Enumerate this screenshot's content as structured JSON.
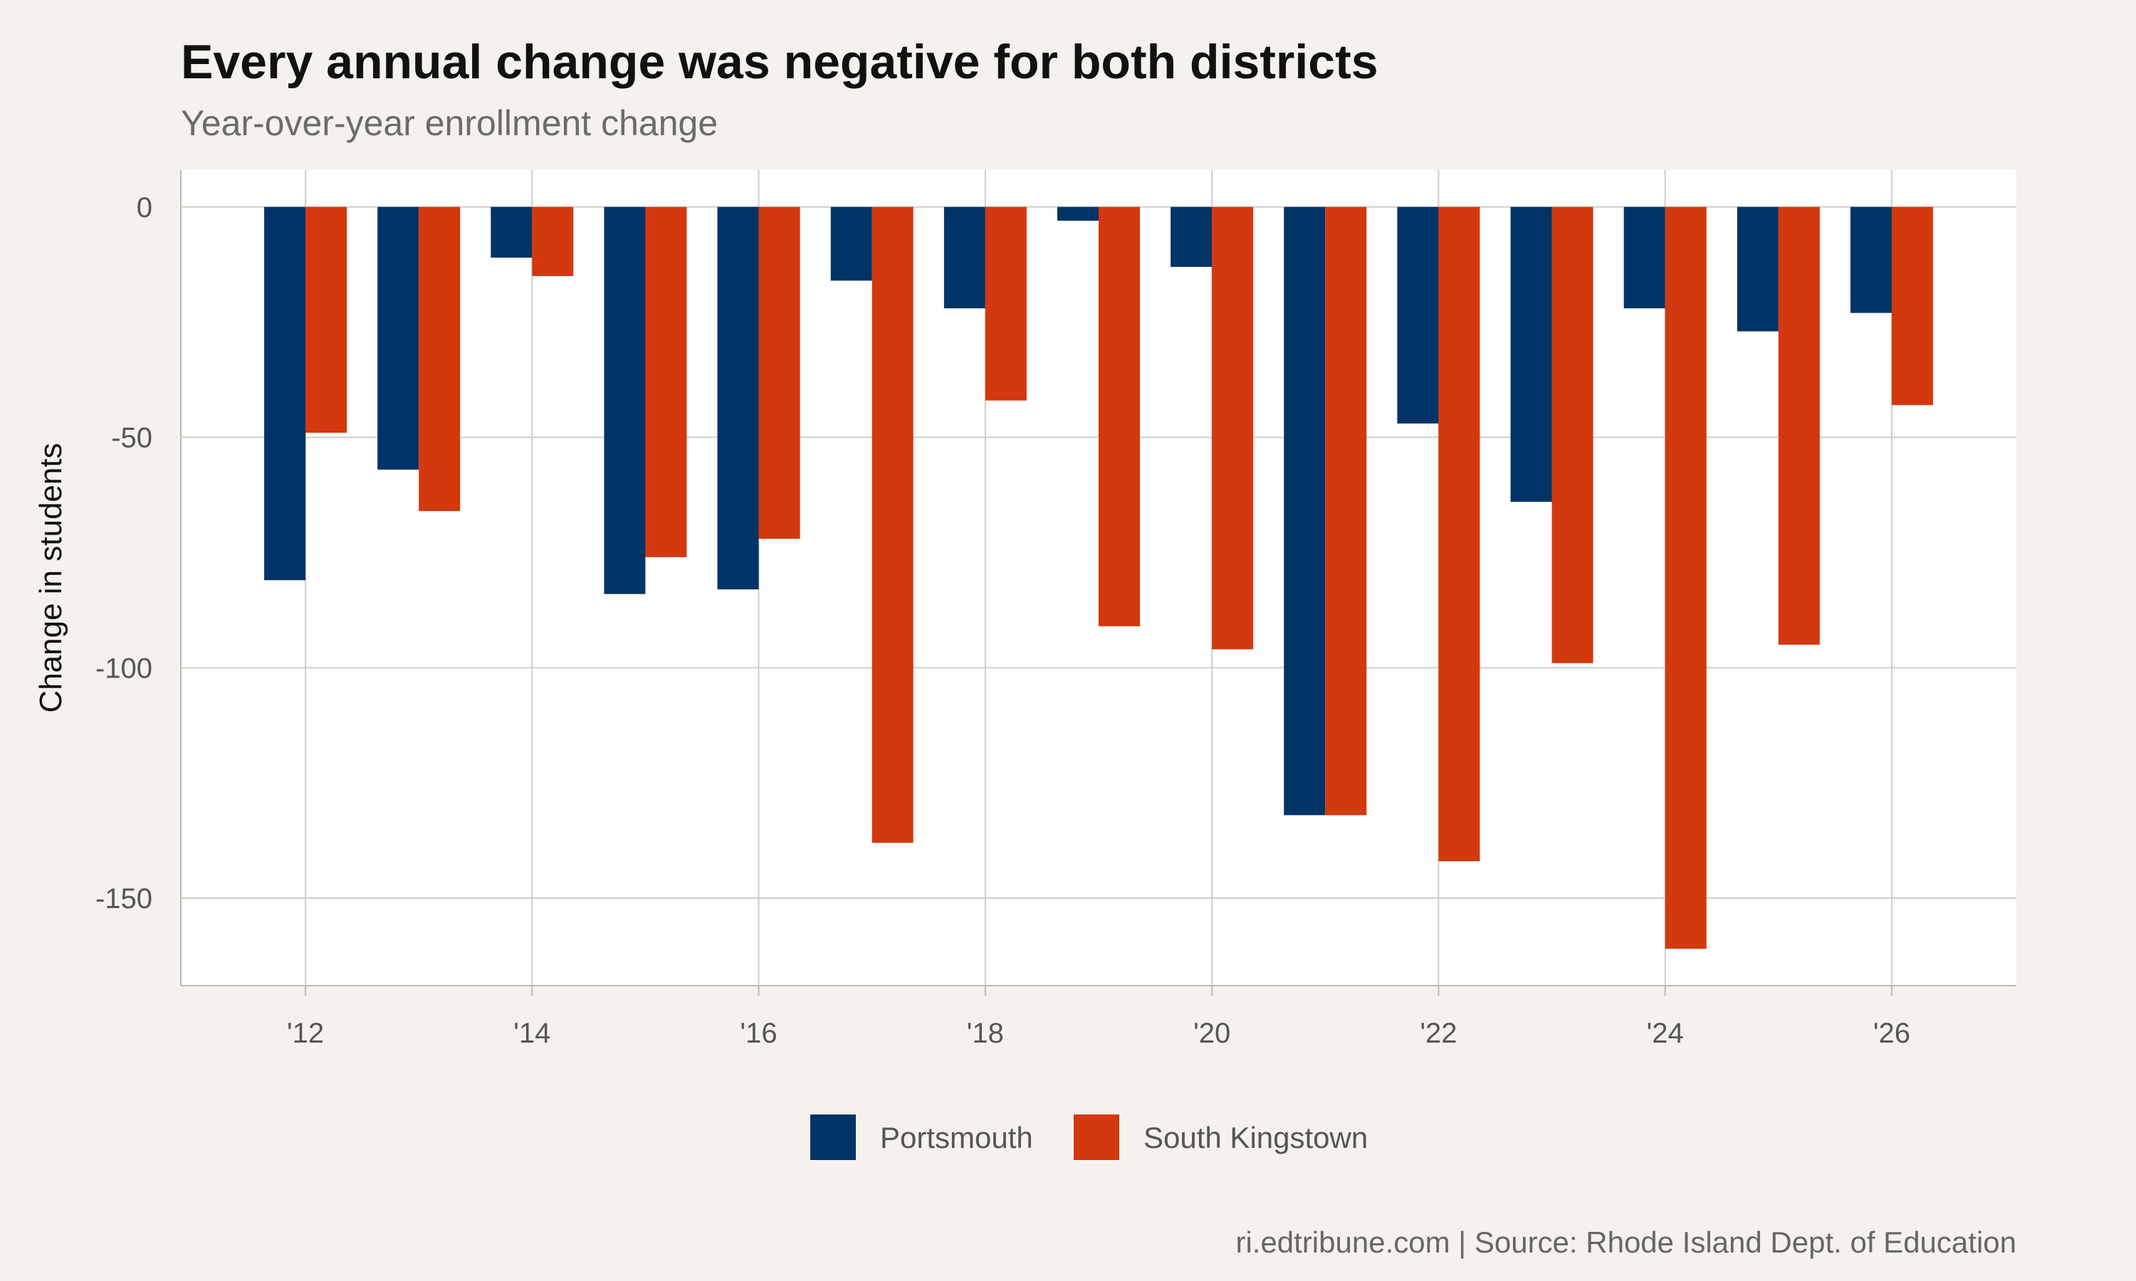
{
  "chart_data": {
    "type": "bar",
    "title": "Every annual change was negative for both districts",
    "subtitle": "Year-over-year enrollment change",
    "xlabel": "",
    "ylabel": "Change in students",
    "caption": "ri.edtribune.com | Source: Rhode Island Dept. of Education",
    "x": [
      2012,
      2013,
      2014,
      2015,
      2016,
      2017,
      2018,
      2019,
      2020,
      2021,
      2022,
      2023,
      2024,
      2025,
      2026
    ],
    "x_ticks": [
      2012,
      2014,
      2016,
      2018,
      2020,
      2022,
      2024,
      2026
    ],
    "x_tick_labels": [
      "'12",
      "'14",
      "'16",
      "'18",
      "'20",
      "'22",
      "'24",
      "'26"
    ],
    "y_ticks": [
      0,
      -50,
      -100,
      -150
    ],
    "y_tick_labels": [
      "0",
      "-50",
      "-100",
      "-150"
    ],
    "xlim": [
      2010.9,
      2027.1
    ],
    "ylim": [
      -169,
      8
    ],
    "grid": true,
    "legend_position": "bottom",
    "series": [
      {
        "name": "Portsmouth",
        "color": "#003366",
        "values": [
          -81,
          -57,
          -11,
          -84,
          -83,
          -16,
          -22,
          -3,
          -13,
          -132,
          -47,
          -64,
          -22,
          -27,
          -23
        ]
      },
      {
        "name": "South Kingstown",
        "color": "#d4380d",
        "values": [
          -49,
          -66,
          -15,
          -76,
          -72,
          -138,
          -42,
          -91,
          -96,
          -132,
          -142,
          -99,
          -161,
          -95,
          -43
        ]
      }
    ]
  }
}
